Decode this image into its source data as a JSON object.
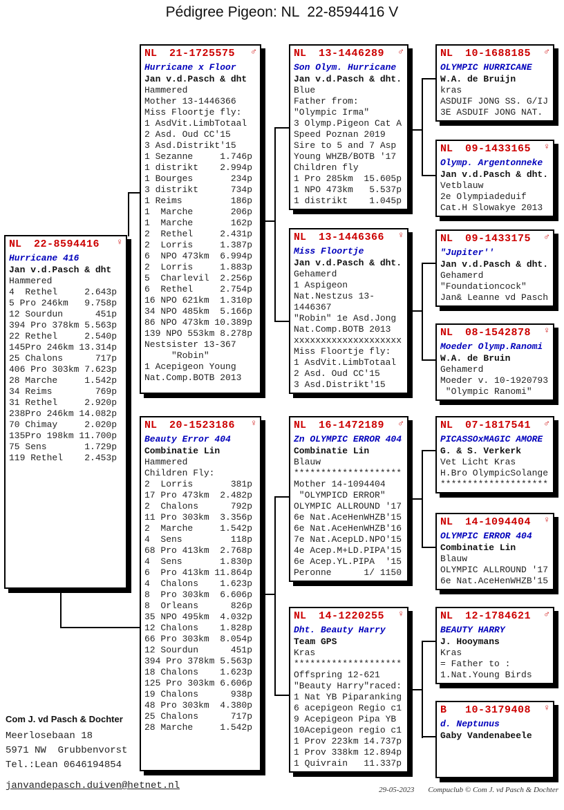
{
  "title": "Pédigree Pigeon: NL  22-8594416 V",
  "colors": {
    "ring_red": "#cc0000",
    "name_blue": "#0000bb",
    "text": "#222222"
  },
  "boxes": {
    "subject": {
      "country": "NL",
      "ring": "22-8594416",
      "sex": "♀",
      "name": "Hurricane 416",
      "owner": "Jan v.d.Pasch & dht",
      "lines": [
        "Hammered",
        "4  Rethel     2.643p",
        "5 Pro 246km   9.758p",
        "12 Sourdun      451p",
        "394 Pro 378km 5.563p",
        "22 Rethel     2.540p",
        "145Pro 246km 13.314p",
        "25 Chalons      717p",
        "406 Pro 303km 7.623p",
        "28 Marche     1.542p",
        "34 Reims        769p",
        "31 Rethel     2.920p",
        "238Pro 246km 14.082p",
        "70 Chimay     2.020p",
        "135Pro 198km 11.700p",
        "75 Sens       1.729p",
        "119 Rethel    2.453p"
      ]
    },
    "sire": {
      "country": "NL",
      "ring": "21-1725575",
      "sex": "♂",
      "name": "Hurricane x Floor",
      "owner": "Jan v.d.Pasch & dht",
      "lines": [
        "Hammered",
        "Mother 13-1446366",
        "Miss Floortje fly:",
        "1 AsdVit.LimbTotaal",
        "2 Asd. Oud CC'15",
        "3 Asd.Distrikt'15",
        "1 Sezanne     1.746p",
        "1 distrikt    2.994p",
        "1 Bourges       234p",
        "3 distrikt      734p",
        "1 Reims         186p",
        "1  Marche       206p",
        "1  Marche       162p",
        "2  Rethel     2.431p",
        "2  Lorris     1.387p",
        "6  NPO 473km  6.994p",
        "2  Lorris     1.883p",
        "5  Charlevil  2.256p",
        "6  Rethel     2.754p",
        "16 NPO 621km  1.310p",
        "34 NPO 485km  5.166p",
        "86 NPO 473km 10.389p",
        "139 NPO 553km 8.278p",
        "Nestsister 13-367",
        "     \"Robin\"",
        "1 Acepigeon Young",
        "Nat.Comp.BOTB 2013"
      ]
    },
    "dam": {
      "country": "NL",
      "ring": "20-1523186",
      "sex": "♀",
      "name": "Beauty Error 404",
      "owner": "Combinatie Lin",
      "lines": [
        "Hammered",
        "Children Fly:",
        "2  Lorris       381p",
        "17 Pro 473km  2.482p",
        "2  Chalons      792p",
        "11 Pro 303km  3.356p",
        "2  Marche     1.542p",
        "4  Sens         118p",
        "68 Pro 413km  2.768p",
        "4  Sens       1.830p",
        "6  Pro 413km 11.864p",
        "4  Chalons    1.623p",
        "8  Pro 303km  6.606p",
        "8  Orleans      826p",
        "35 NPO 495km  4.032p",
        "12 Chalons    1.828p",
        "66 Pro 303km  8.054p",
        "12 Sourdun      451p",
        "394 Pro 378km 5.563p",
        "18 Chalons    1.623p",
        "125 Pro 303km 6.606p",
        "19 Chalons      938p",
        "48 Pro 303km  4.380p",
        "25 Chalons      717p",
        "28 Marche     1.542p"
      ]
    },
    "g3_1": {
      "country": "NL",
      "ring": "13-1446289",
      "sex": "♂",
      "name": "Son Olym. Hurricane",
      "owner": "Jan v.d.Pasch & dht.",
      "lines": [
        "Blue",
        "Father from:",
        "\"Olympic Irma\"",
        "3 Olymp.Pigeon Cat A",
        "Speed Poznan 2019",
        "Sire to 5 and 7 Asp",
        "Young WHZB/BOTB '17",
        "Children fly",
        "1 Pro 285km  15.605p",
        "1 NPO 473km   5.537p",
        "1 distrikt    1.045p"
      ]
    },
    "g3_2": {
      "country": "NL",
      "ring": "13-1446366",
      "sex": "♀",
      "name": "Miss Floortje",
      "owner": "Jan v.d.Pasch & dht.",
      "lines": [
        "Gehamerd",
        "1 Aspigeon",
        "Nat.Nestzus 13-",
        "1446367",
        "\"Robin\" 1e Asd.Jong",
        "Nat.Comp.BOTB 2013",
        "xxxxxxxxxxxxxxxxxxxx",
        "Miss Floortje fly:",
        "1 AsdVit.LimbTotaal",
        "2 Asd. Oud CC'15",
        "3 Asd.Distrikt'15"
      ]
    },
    "g3_3": {
      "country": "NL",
      "ring": "16-1472189",
      "sex": "♂",
      "name": "Zn OLYMPIC ERROR 404",
      "owner": "Combinatie Lin",
      "lines": [
        "Blauw",
        "********************",
        "Mother 14-1094404",
        " \"OLYMPICD ERROR\"",
        "OLYMPIC ALLROUND '17",
        "6e Nat.AceHenWHZB'15",
        "6e Nat.AceHenWHZB'16",
        "7e Nat.AcepLD.NPO'15",
        "4e Acep.M+LD.PIPA'15",
        "6e Acep.YL.PIPA  '15",
        "Peronne      1/ 1150"
      ]
    },
    "g3_4": {
      "country": "NL",
      "ring": "14-1220255",
      "sex": "♀",
      "name": "Dht. Beauty Harry",
      "owner": "Team GPS",
      "lines": [
        "Kras",
        "********************",
        "Offspring 12-621",
        "\"Beauty Harry\"raced:",
        "1 Nat YB Piparanking",
        "6 acepigeon Regio c1",
        "9 Acepigeon Pipa YB",
        "10Acepigeon regio c1",
        "1 Prov 223km 14.737p",
        "1 Prov 338km 12.894p",
        "1 Quivrain   11.337p"
      ]
    },
    "g4_1": {
      "country": "NL",
      "ring": "10-1688185",
      "sex": "♂",
      "name": "OLYMPIC HURRICANE",
      "owner": "W.A. de Bruijn",
      "lines": [
        "kras",
        "ASDUIF JONG SS. G/IJ",
        "3E ASDUIF JONG NAT."
      ]
    },
    "g4_2": {
      "country": "NL",
      "ring": "09-1433165",
      "sex": "♀",
      "name": "Olymp. Argentonneke",
      "owner": "Jan v.d.Pasch & dht.",
      "lines": [
        "Vetblauw",
        "2e Olympiadeduif",
        "Cat.H Slowakye 2013"
      ]
    },
    "g4_3": {
      "country": "NL",
      "ring": "09-1433175",
      "sex": "♂",
      "name": "\"Jupiter''",
      "owner": "Jan v.d.Pasch & dht.",
      "lines": [
        "Gehamerd",
        "\"Foundationcock\"",
        "Jan& Leanne vd Pasch"
      ]
    },
    "g4_4": {
      "country": "NL",
      "ring": "08-1542878",
      "sex": "♀",
      "name": "Moeder Olymp.Ranomi",
      "owner": "W.A. de Bruin",
      "lines": [
        "Gehamerd",
        "Moeder v. 10-1920793",
        " \"Olympic Ranomi\""
      ]
    },
    "g4_5": {
      "country": "NL",
      "ring": "07-1817541",
      "sex": "♂",
      "name": "PICASSOxMAGIC AMORE",
      "owner": "G. & S. Verkerk",
      "lines": [
        "Vet Licht Kras",
        "H.Bro OlympicSolange",
        "********************"
      ]
    },
    "g4_6": {
      "country": "NL",
      "ring": "14-1094404",
      "sex": "♀",
      "name": "OLYMPIC ERROR 404",
      "owner": "Combinatie Lin",
      "lines": [
        "Blauw",
        "OLYMPIC ALLROUND '17",
        "6e Nat.AceHenWHZB'15"
      ]
    },
    "g4_7": {
      "country": "NL",
      "ring": "12-1784621",
      "sex": "♂",
      "name": "BEAUTY HARRY",
      "owner": "J. Hooymans",
      "lines": [
        "Kras",
        "= Father to :",
        "1.Nat.Young Birds"
      ]
    },
    "g4_8": {
      "country": "B",
      "ring": "10-3179408",
      "sex": "♀",
      "name": "d. Neptunus",
      "owner": "Gaby Vandenabeele",
      "lines": []
    }
  },
  "footer": {
    "company": "Com J. vd Pasch & Dochter",
    "address1": "Meerlosebaan 18",
    "address2": "5971 NW  Grubbenvorst",
    "phone": "Tel.:Lean 0646194854",
    "email": "janvandepasch.duiven@hetnet.nl",
    "date": "29-05-2023",
    "credit": "Compuclub © Com J. vd Pasch & Dochter"
  }
}
